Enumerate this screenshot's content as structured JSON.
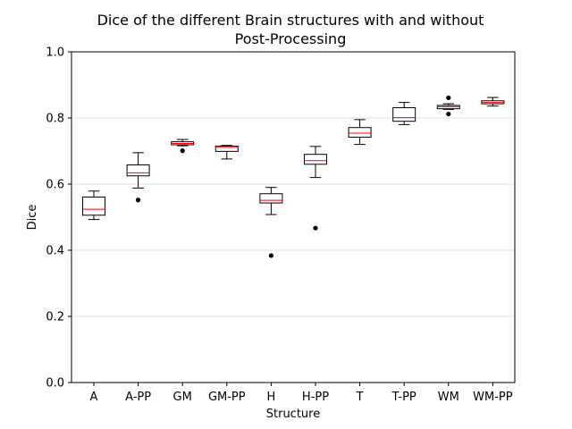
{
  "chart_data": {
    "type": "box",
    "title_lines": [
      "Dice of the different Brain structures with and without",
      "Post-Processing"
    ],
    "xlabel": "Structure",
    "ylabel": "Dice",
    "ylim": [
      0.0,
      1.0
    ],
    "yticks": [
      0.0,
      0.2,
      0.4,
      0.6,
      0.8,
      1.0
    ],
    "ytick_labels": [
      "0.0",
      "0.2",
      "0.4",
      "0.6",
      "0.8",
      "1.0"
    ],
    "grid": "horizontal",
    "colors": {
      "box": "#000000",
      "median": "#ff0000",
      "grid": "#e0e0e0",
      "outlier": "#000000"
    },
    "categories": [
      "A",
      "A-PP",
      "GM",
      "GM-PP",
      "H",
      "H-PP",
      "T",
      "T-PP",
      "WM",
      "WM-PP"
    ],
    "boxes": [
      {
        "whisker_low": 0.493,
        "q1": 0.506,
        "median": 0.524,
        "q3": 0.561,
        "whisker_high": 0.579,
        "outliers": []
      },
      {
        "whisker_low": 0.588,
        "q1": 0.625,
        "median": 0.634,
        "q3": 0.658,
        "whisker_high": 0.695,
        "outliers": [
          0.552
        ]
      },
      {
        "whisker_low": 0.716,
        "q1": 0.719,
        "median": 0.723,
        "q3": 0.728,
        "whisker_high": 0.735,
        "outliers": [
          0.701
        ]
      },
      {
        "whisker_low": 0.676,
        "q1": 0.699,
        "median": 0.711,
        "q3": 0.715,
        "whisker_high": 0.717,
        "outliers": []
      },
      {
        "whisker_low": 0.508,
        "q1": 0.543,
        "median": 0.551,
        "q3": 0.571,
        "whisker_high": 0.59,
        "outliers": [
          0.384
        ]
      },
      {
        "whisker_low": 0.62,
        "q1": 0.66,
        "median": 0.671,
        "q3": 0.69,
        "whisker_high": 0.714,
        "outliers": [
          0.467
        ]
      },
      {
        "whisker_low": 0.72,
        "q1": 0.742,
        "median": 0.754,
        "q3": 0.771,
        "whisker_high": 0.795,
        "outliers": []
      },
      {
        "whisker_low": 0.78,
        "q1": 0.79,
        "median": 0.801,
        "q3": 0.831,
        "whisker_high": 0.847,
        "outliers": []
      },
      {
        "whisker_low": 0.826,
        "q1": 0.828,
        "median": 0.834,
        "q3": 0.838,
        "whisker_high": 0.843,
        "outliers": [
          0.861,
          0.812
        ]
      },
      {
        "whisker_low": 0.836,
        "q1": 0.843,
        "median": 0.847,
        "q3": 0.852,
        "whisker_high": 0.862,
        "outliers": []
      }
    ]
  }
}
